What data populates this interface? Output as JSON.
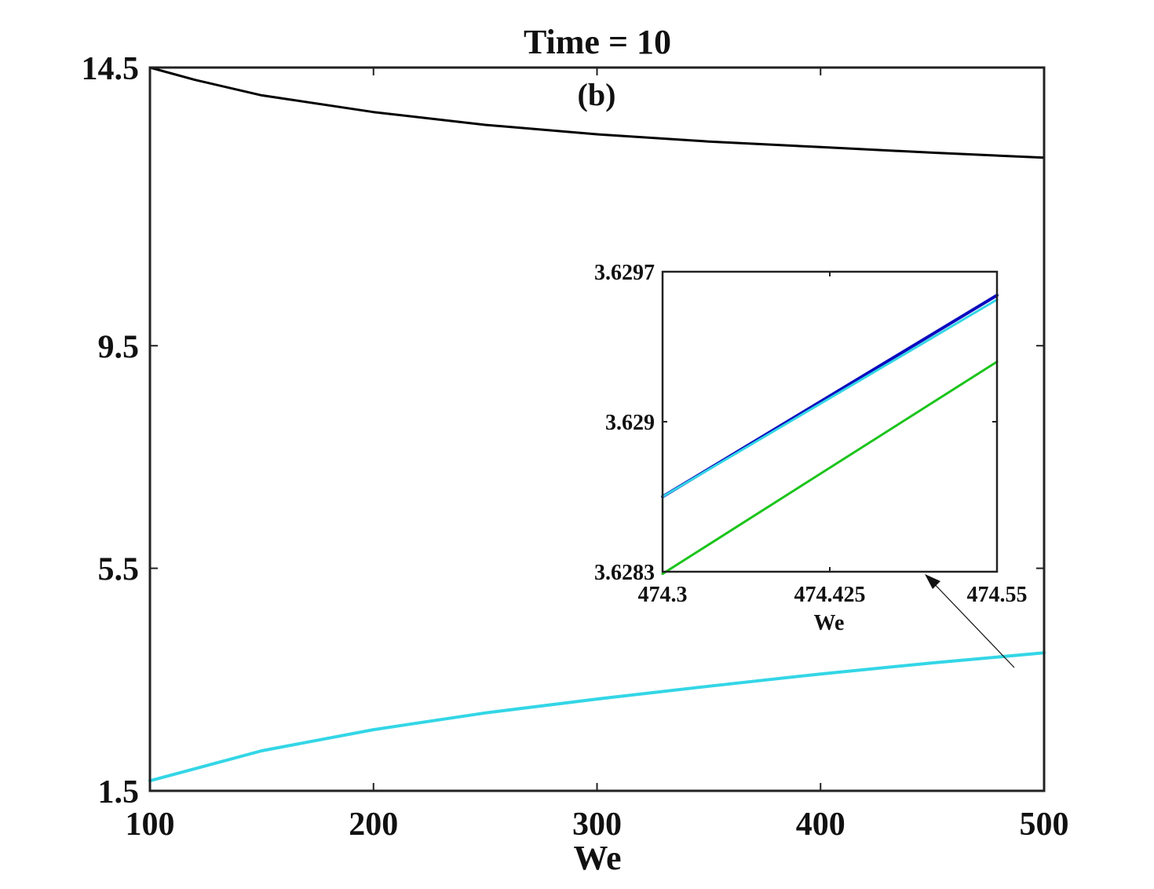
{
  "chart_data": [
    {
      "type": "line",
      "title": "Time = 10",
      "subtitle": "(b)",
      "xlabel": "We",
      "ylabel": "",
      "xlim": [
        100,
        500
      ],
      "ylim": [
        1.5,
        14.5
      ],
      "x_ticks": [
        "100",
        "200",
        "300",
        "400",
        "500"
      ],
      "y_ticks": [
        "1.5",
        "5.5",
        "9.5",
        "14.5"
      ],
      "grid": false,
      "series": [
        {
          "color": "#000000",
          "x": [
            100,
            120,
            150,
            200,
            250,
            300,
            350,
            400,
            450,
            500
          ],
          "y": [
            14.5,
            14.28,
            14.0,
            13.7,
            13.47,
            13.3,
            13.17,
            13.07,
            12.97,
            12.88
          ]
        },
        {
          "color": "#0b0bbf",
          "x": [
            100,
            150,
            200,
            250,
            300,
            350,
            400,
            450,
            500
          ],
          "y": [
            1.68,
            2.22,
            2.6,
            2.9,
            3.15,
            3.38,
            3.6,
            3.8,
            3.98
          ]
        },
        {
          "color": "#1cc41c",
          "x": [
            100,
            150,
            200,
            250,
            300,
            350,
            400,
            450,
            500
          ],
          "y": [
            1.68,
            2.22,
            2.6,
            2.9,
            3.15,
            3.38,
            3.6,
            3.8,
            3.98
          ]
        },
        {
          "color": "#33d6e6",
          "x": [
            100,
            150,
            200,
            250,
            300,
            350,
            400,
            450,
            500
          ],
          "y": [
            1.68,
            2.22,
            2.6,
            2.9,
            3.15,
            3.38,
            3.6,
            3.8,
            3.98
          ]
        }
      ]
    },
    {
      "type": "line",
      "role": "inset",
      "xlabel": "We",
      "xlim": [
        474.3,
        474.55
      ],
      "ylim": [
        3.6283,
        3.6297
      ],
      "x_ticks": [
        "474.3",
        "474.425",
        "474.55"
      ],
      "y_ticks": [
        "3.6283",
        "3.629",
        "3.6297"
      ],
      "series": [
        {
          "color": "#0b0bbf",
          "x": [
            474.3,
            474.55
          ],
          "y": [
            3.62865,
            3.62959
          ]
        },
        {
          "color": "#33d6e6",
          "x": [
            474.3,
            474.55
          ],
          "y": [
            3.62865,
            3.62957
          ]
        },
        {
          "color": "#1cc41c",
          "x": [
            474.3,
            474.55
          ],
          "y": [
            3.62829,
            3.62928
          ]
        }
      ]
    }
  ]
}
